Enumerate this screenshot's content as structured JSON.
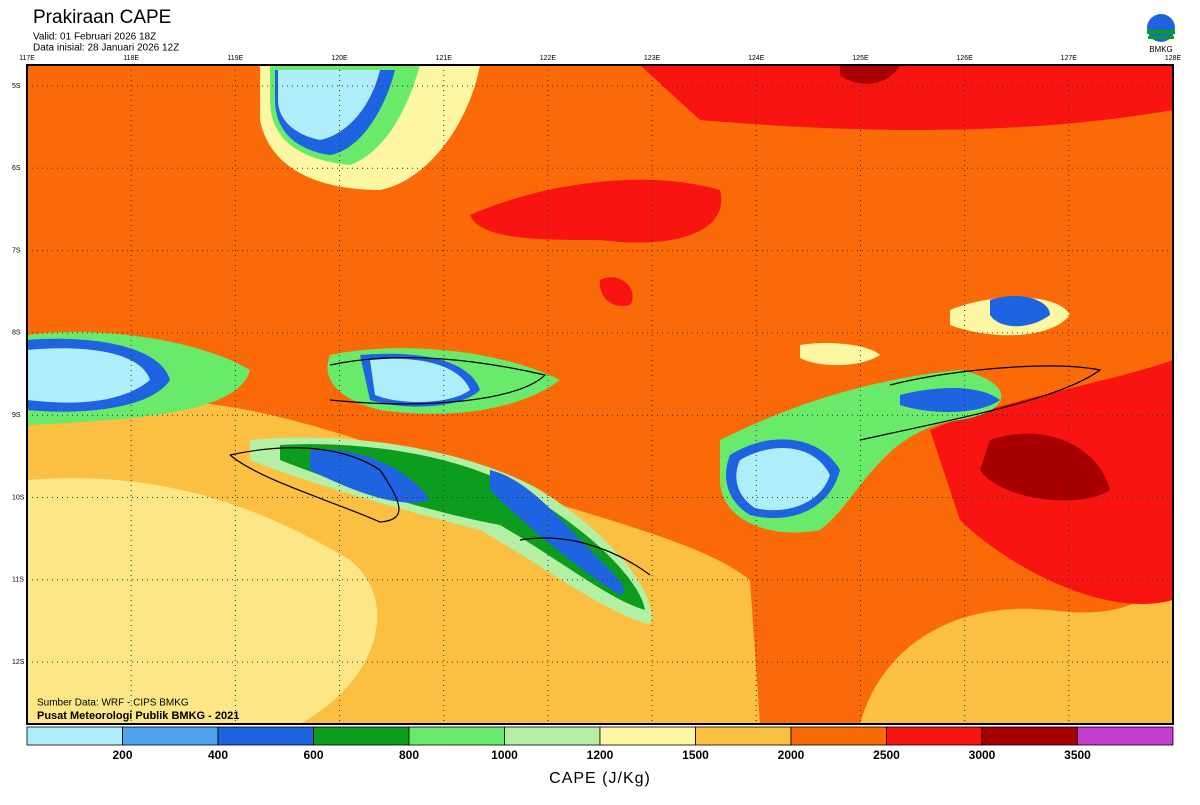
{
  "header": {
    "title": "Prakiraan CAPE",
    "valid": "Valid: 01 Februari 2026 18Z",
    "init": "Data inisial: 28 Januari 2026 12Z",
    "logo": "BMKG"
  },
  "map": {
    "lon_labels": [
      "117E",
      "118E",
      "119E",
      "120E",
      "121E",
      "122E",
      "123E",
      "124E",
      "125E",
      "126E",
      "127E",
      "128E"
    ],
    "lat_labels": [
      "5S",
      "6S",
      "7S",
      "8S",
      "9S",
      "10S",
      "11S",
      "12S"
    ],
    "credits": [
      "Sumber Data: WRF - CIPS BMKG",
      "Pusat Meteorologi Publik BMKG - 2021"
    ]
  },
  "colorbar": {
    "title": "CAPE (J/Kg)",
    "ticks": [
      200,
      400,
      600,
      800,
      1000,
      1200,
      1500,
      2000,
      2500,
      3000,
      3500
    ],
    "colors": [
      "#aeeef8",
      "#4fa3ee",
      "#1e64e0",
      "#0c9c1e",
      "#6aea6a",
      "#b4f0a4",
      "#fdf7a4",
      "#fbbf42",
      "#fb6a08",
      "#f81410",
      "#a80000",
      "#c83cd0"
    ]
  }
}
